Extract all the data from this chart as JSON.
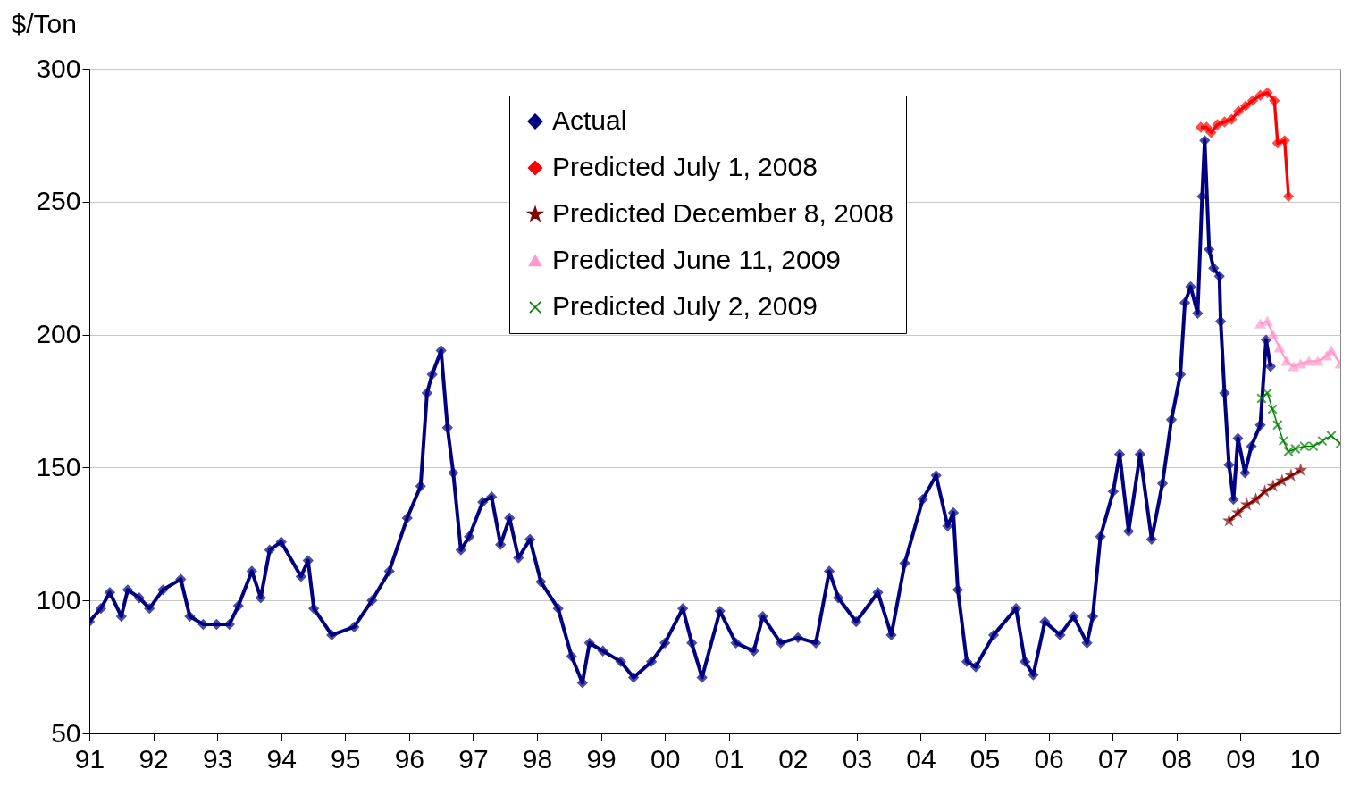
{
  "chart_data": {
    "type": "line",
    "ylabel": "$/Ton",
    "xlim": [
      1991,
      2010.56
    ],
    "xticks": [
      {
        "value": 1991,
        "label": "91"
      },
      {
        "value": 1992,
        "label": "92"
      },
      {
        "value": 1993,
        "label": "93"
      },
      {
        "value": 1994,
        "label": "94"
      },
      {
        "value": 1995,
        "label": "95"
      },
      {
        "value": 1996,
        "label": "96"
      },
      {
        "value": 1997,
        "label": "97"
      },
      {
        "value": 1998,
        "label": "98"
      },
      {
        "value": 1999,
        "label": "99"
      },
      {
        "value": 2000,
        "label": "00"
      },
      {
        "value": 2001,
        "label": "01"
      },
      {
        "value": 2002,
        "label": "02"
      },
      {
        "value": 2003,
        "label": "03"
      },
      {
        "value": 2004,
        "label": "04"
      },
      {
        "value": 2005,
        "label": "05"
      },
      {
        "value": 2006,
        "label": "06"
      },
      {
        "value": 2007,
        "label": "07"
      },
      {
        "value": 2008,
        "label": "08"
      },
      {
        "value": 2009,
        "label": "09"
      },
      {
        "value": 2010,
        "label": "10"
      }
    ],
    "ylim": [
      50,
      300
    ],
    "yticks": [
      50,
      100,
      150,
      200,
      250,
      300
    ],
    "grid": "y",
    "legend": "top",
    "series": [
      {
        "name": "Actual",
        "color": "#000080",
        "marker": "diamond",
        "x": [
          1991.0,
          1991.18,
          1991.32,
          1991.5,
          1991.6,
          1991.78,
          1991.94,
          1992.15,
          1992.43,
          1992.57,
          1992.78,
          1992.99,
          1993.19,
          1993.33,
          1993.54,
          1993.68,
          1993.82,
          1994.0,
          1994.31,
          1994.42,
          1994.51,
          1994.79,
          1995.14,
          1995.42,
          1995.69,
          1995.97,
          1996.18,
          1996.28,
          1996.36,
          1996.5,
          1996.6,
          1996.69,
          1996.81,
          1996.94,
          1997.15,
          1997.29,
          1997.43,
          1997.57,
          1997.71,
          1997.89,
          1998.06,
          1998.33,
          1998.54,
          1998.71,
          1998.82,
          1999.03,
          1999.31,
          1999.51,
          1999.79,
          2000.0,
          2000.28,
          2000.42,
          2000.58,
          2000.86,
          2001.11,
          2001.39,
          2001.53,
          2001.81,
          2002.08,
          2002.36,
          2002.57,
          2002.71,
          2002.99,
          2003.33,
          2003.54,
          2003.75,
          2004.03,
          2004.24,
          2004.42,
          2004.51,
          2004.58,
          2004.72,
          2004.86,
          2005.14,
          2005.49,
          2005.63,
          2005.76,
          2005.94,
          2006.18,
          2006.39,
          2006.6,
          2006.69,
          2006.81,
          2007.01,
          2007.11,
          2007.25,
          2007.43,
          2007.61,
          2007.78,
          2007.92,
          2008.06,
          2008.13,
          2008.22,
          2008.33,
          2008.4,
          2008.44,
          2008.51,
          2008.58,
          2008.67,
          2008.69,
          2008.75,
          2008.82,
          2008.89,
          2008.96,
          2009.07,
          2009.17,
          2009.31,
          2009.4,
          2009.47
        ],
        "values": [
          92,
          97,
          103,
          94,
          104,
          101,
          97,
          104,
          108,
          94,
          91,
          91,
          91,
          98,
          111,
          101,
          119,
          122,
          109,
          115,
          97,
          87,
          90,
          100,
          111,
          131,
          143,
          178,
          185,
          194,
          165,
          148,
          119,
          124,
          137,
          139,
          121,
          131,
          116,
          123,
          107,
          97,
          79,
          69,
          84,
          81,
          77,
          71,
          77,
          84,
          97,
          84,
          71,
          96,
          84,
          81,
          94,
          84,
          86,
          84,
          111,
          101,
          92,
          103,
          87,
          114,
          138,
          147,
          128,
          133,
          104,
          77,
          75,
          87,
          97,
          77,
          72,
          92,
          87,
          94,
          84,
          94,
          124,
          141,
          155,
          126,
          155,
          123,
          144,
          168,
          185,
          212,
          218,
          208,
          252,
          273,
          232,
          225,
          222,
          205,
          178,
          151,
          138,
          161,
          148,
          158,
          166,
          198,
          188
        ]
      },
      {
        "name": "Predicted July 1,  2008",
        "color": "#ff0000",
        "marker": "diamond",
        "x": [
          2008.38,
          2008.47,
          2008.54,
          2008.64,
          2008.75,
          2008.86,
          2008.97,
          2009.08,
          2009.19,
          2009.31,
          2009.42,
          2009.53,
          2009.58,
          2009.69,
          2009.75
        ],
        "values": [
          278,
          278,
          276,
          279,
          280,
          281,
          284,
          286,
          288,
          290,
          291,
          288,
          272,
          273,
          252
        ]
      },
      {
        "name": "Predicted December 8, 2008",
        "color": "#800000",
        "marker": "star",
        "x": [
          2008.82,
          2008.96,
          2009.1,
          2009.24,
          2009.38,
          2009.51,
          2009.65,
          2009.79,
          2009.94
        ],
        "values": [
          130,
          133,
          136,
          138,
          141,
          143,
          145,
          147,
          149
        ]
      },
      {
        "name": "Predicted June 11, 2009",
        "color": "#ff99cc",
        "marker": "triangle",
        "x": [
          2009.31,
          2009.42,
          2009.51,
          2009.61,
          2009.72,
          2009.83,
          2009.94,
          2010.07,
          2010.21,
          2010.35,
          2010.42,
          2010.56
        ],
        "values": [
          204,
          205,
          200,
          195,
          190,
          188,
          189,
          190,
          190,
          192,
          194,
          189
        ]
      },
      {
        "name": "Predicted July 2, 2009",
        "color": "#008000",
        "marker": "cross",
        "x": [
          2009.33,
          2009.42,
          2009.5,
          2009.58,
          2009.67,
          2009.75,
          2009.86,
          2010.0,
          2010.14,
          2010.28,
          2010.42,
          2010.56
        ],
        "values": [
          176,
          178,
          172,
          166,
          160,
          156,
          157,
          158,
          158,
          160,
          162,
          159
        ]
      }
    ]
  }
}
